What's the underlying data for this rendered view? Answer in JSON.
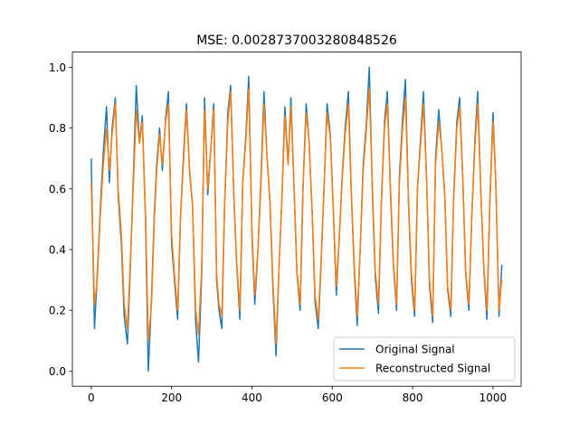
{
  "chart_data": {
    "type": "line",
    "title": "MSE: 0.002873700328084852​6",
    "xlabel": "",
    "ylabel": "",
    "xlim": [
      -47,
      1070
    ],
    "ylim": [
      -0.05,
      1.05
    ],
    "xticks": [
      0,
      200,
      400,
      600,
      800,
      1000
    ],
    "xtick_labels": [
      "0",
      "200",
      "400",
      "600",
      "800",
      "1000"
    ],
    "yticks": [
      0.0,
      0.2,
      0.4,
      0.6,
      0.8,
      1.0
    ],
    "ytick_labels": [
      "0.0",
      "0.2",
      "0.4",
      "0.6",
      "0.8",
      "1.0"
    ],
    "grid": false,
    "legend_position": "lower-right",
    "series": [
      {
        "name": "Original Signal",
        "color": "#1f77b4",
        "x": [
          0,
          8,
          15,
          22,
          30,
          38,
          45,
          52,
          60,
          67,
          75,
          82,
          90,
          97,
          105,
          112,
          120,
          127,
          135,
          142,
          150,
          157,
          163,
          170,
          177,
          185,
          192,
          200,
          207,
          215,
          222,
          230,
          237,
          245,
          252,
          260,
          267,
          275,
          282,
          290,
          297,
          305,
          312,
          318,
          325,
          332,
          340,
          347,
          355,
          362,
          370,
          377,
          385,
          392,
          400,
          407,
          415,
          422,
          430,
          437,
          445,
          452,
          460,
          467,
          475,
          482,
          490,
          497,
          505,
          512,
          520,
          527,
          535,
          542,
          550,
          557,
          565,
          572,
          580,
          587,
          595,
          602,
          610,
          617,
          625,
          632,
          640,
          647,
          655,
          662,
          670,
          677,
          685,
          692,
          700,
          707,
          715,
          722,
          730,
          737,
          745,
          752,
          760,
          767,
          775,
          782,
          790,
          797,
          805,
          812,
          820,
          827,
          835,
          842,
          850,
          857,
          865,
          872,
          880,
          887,
          895,
          902,
          910,
          917,
          925,
          932,
          940,
          947,
          955,
          962,
          970,
          977,
          985,
          992,
          1000,
          1007,
          1015,
          1022
        ],
        "y": [
          0.7,
          0.14,
          0.32,
          0.52,
          0.72,
          0.87,
          0.62,
          0.8,
          0.9,
          0.58,
          0.42,
          0.18,
          0.09,
          0.33,
          0.65,
          0.94,
          0.75,
          0.84,
          0.5,
          0.0,
          0.24,
          0.52,
          0.68,
          0.8,
          0.66,
          0.83,
          0.92,
          0.42,
          0.3,
          0.17,
          0.5,
          0.72,
          0.88,
          0.65,
          0.55,
          0.16,
          0.03,
          0.32,
          0.9,
          0.58,
          0.72,
          0.88,
          0.3,
          0.2,
          0.14,
          0.55,
          0.85,
          0.94,
          0.57,
          0.35,
          0.17,
          0.62,
          0.78,
          0.97,
          0.45,
          0.22,
          0.4,
          0.62,
          0.92,
          0.72,
          0.55,
          0.28,
          0.05,
          0.33,
          0.58,
          0.87,
          0.68,
          0.9,
          0.6,
          0.32,
          0.2,
          0.6,
          0.88,
          0.76,
          0.52,
          0.23,
          0.14,
          0.35,
          0.62,
          0.88,
          0.78,
          0.55,
          0.25,
          0.43,
          0.65,
          0.8,
          0.92,
          0.6,
          0.32,
          0.15,
          0.42,
          0.68,
          0.82,
          1.0,
          0.58,
          0.31,
          0.19,
          0.55,
          0.82,
          0.92,
          0.58,
          0.35,
          0.2,
          0.64,
          0.83,
          0.96,
          0.54,
          0.3,
          0.18,
          0.6,
          0.77,
          0.92,
          0.62,
          0.28,
          0.16,
          0.7,
          0.86,
          0.74,
          0.58,
          0.27,
          0.18,
          0.57,
          0.82,
          0.9,
          0.63,
          0.32,
          0.2,
          0.5,
          0.76,
          0.92,
          0.58,
          0.34,
          0.17,
          0.55,
          0.85,
          0.62,
          0.18,
          0.35
        ]
      },
      {
        "name": "Reconstructed Signal",
        "color": "#ff7f0e",
        "x": [
          0,
          8,
          15,
          22,
          30,
          38,
          45,
          52,
          60,
          67,
          75,
          82,
          90,
          97,
          105,
          112,
          120,
          127,
          135,
          142,
          150,
          157,
          163,
          170,
          177,
          185,
          192,
          200,
          207,
          215,
          222,
          230,
          237,
          245,
          252,
          260,
          267,
          275,
          282,
          290,
          297,
          305,
          312,
          318,
          325,
          332,
          340,
          347,
          355,
          362,
          370,
          377,
          385,
          392,
          400,
          407,
          415,
          422,
          430,
          437,
          445,
          452,
          460,
          467,
          475,
          482,
          490,
          497,
          505,
          512,
          520,
          527,
          535,
          542,
          550,
          557,
          565,
          572,
          580,
          587,
          595,
          602,
          610,
          617,
          625,
          632,
          640,
          647,
          655,
          662,
          670,
          677,
          685,
          692,
          700,
          707,
          715,
          722,
          730,
          737,
          745,
          752,
          760,
          767,
          775,
          782,
          790,
          797,
          805,
          812,
          820,
          827,
          835,
          842,
          850,
          857,
          865,
          872,
          880,
          887,
          895,
          902,
          910,
          917,
          925,
          932,
          940,
          947,
          955,
          962,
          970,
          977,
          985,
          992,
          1000,
          1007,
          1015,
          1022
        ],
        "y": [
          0.62,
          0.22,
          0.3,
          0.5,
          0.68,
          0.8,
          0.66,
          0.78,
          0.88,
          0.6,
          0.45,
          0.22,
          0.14,
          0.35,
          0.62,
          0.86,
          0.75,
          0.82,
          0.52,
          0.1,
          0.22,
          0.5,
          0.66,
          0.78,
          0.68,
          0.82,
          0.88,
          0.45,
          0.32,
          0.2,
          0.5,
          0.7,
          0.86,
          0.66,
          0.55,
          0.2,
          0.12,
          0.34,
          0.86,
          0.6,
          0.72,
          0.86,
          0.32,
          0.22,
          0.18,
          0.55,
          0.82,
          0.92,
          0.58,
          0.36,
          0.2,
          0.62,
          0.76,
          0.93,
          0.47,
          0.25,
          0.4,
          0.6,
          0.88,
          0.72,
          0.55,
          0.3,
          0.09,
          0.33,
          0.58,
          0.84,
          0.68,
          0.87,
          0.6,
          0.33,
          0.22,
          0.6,
          0.85,
          0.76,
          0.52,
          0.25,
          0.17,
          0.36,
          0.62,
          0.85,
          0.77,
          0.55,
          0.28,
          0.43,
          0.64,
          0.78,
          0.88,
          0.6,
          0.34,
          0.18,
          0.42,
          0.66,
          0.8,
          0.93,
          0.6,
          0.33,
          0.22,
          0.55,
          0.8,
          0.88,
          0.6,
          0.36,
          0.22,
          0.62,
          0.8,
          0.9,
          0.55,
          0.32,
          0.2,
          0.6,
          0.75,
          0.88,
          0.62,
          0.3,
          0.18,
          0.68,
          0.82,
          0.74,
          0.58,
          0.28,
          0.2,
          0.56,
          0.8,
          0.87,
          0.63,
          0.33,
          0.22,
          0.5,
          0.74,
          0.88,
          0.58,
          0.35,
          0.2,
          0.55,
          0.82,
          0.62,
          0.2,
          0.3
        ]
      }
    ]
  }
}
